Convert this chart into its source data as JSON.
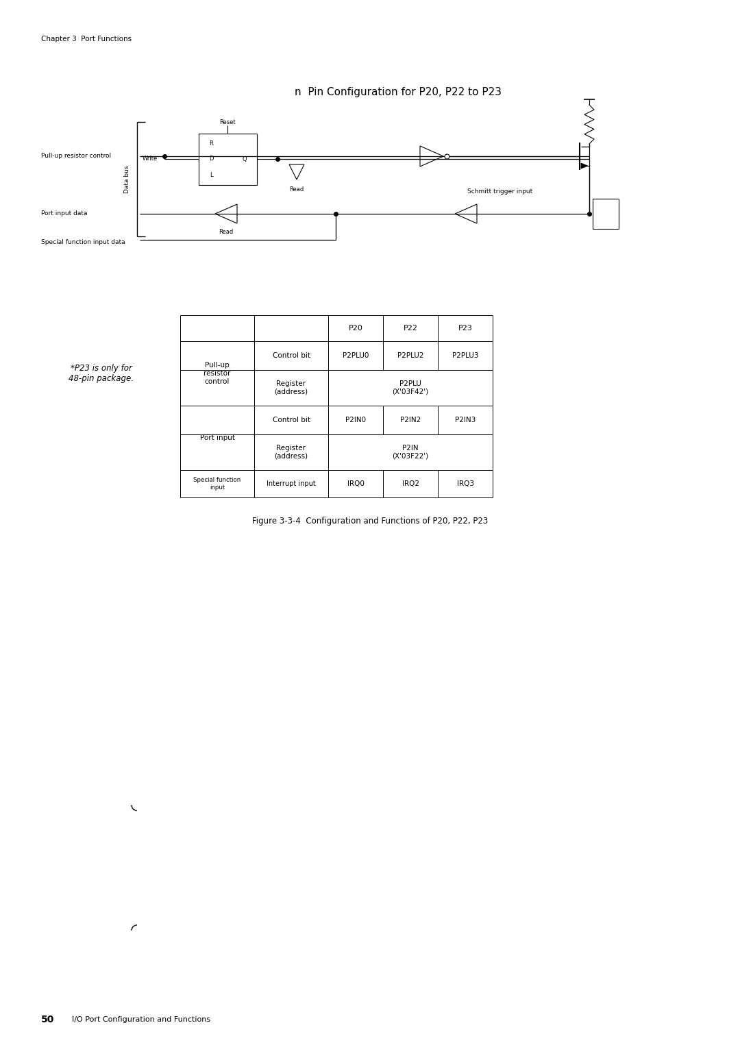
{
  "title": "n  Pin Configuration for P20, P22 to P23",
  "chapter_header": "Chapter 3  Port Functions",
  "figure_caption": "Figure 3-3-4  Configuration and Functions of P20, P22, P23",
  "page_number": "50",
  "page_footer": "I/O Port Configuration and Functions",
  "note_text": "*P23 is only for\n48-pin package.",
  "labels": {
    "pull_up_resistor": "Pull-up resistor control",
    "data_bus": "Data bus",
    "port_input_data": "Port input data",
    "special_function": "Special function input data",
    "schmitt_trigger": "Schmitt trigger input",
    "reset": "Reset",
    "write": "Write",
    "read_top": "Read",
    "read_bottom": "Read"
  },
  "bg_color": "#ffffff",
  "line_color": "#000000",
  "text_color": "#000000"
}
